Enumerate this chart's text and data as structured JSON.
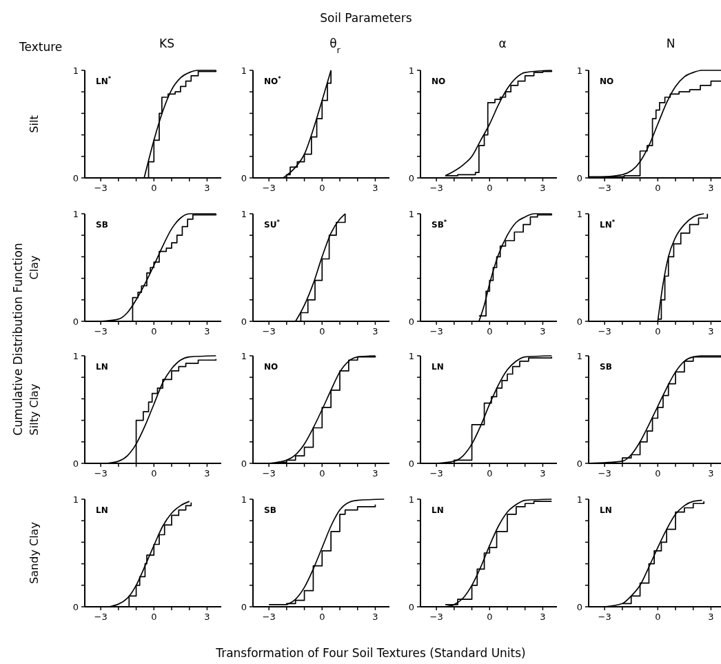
{
  "chart_data": [
    {
      "type": "line",
      "title": "KS",
      "ylabel": "Silt",
      "annotations": [
        "LN$^{*}$",
        "Soil Parameters",
        "Texture",
        "Cumulative Distribution Function",
        "Transformation of Four Soil Textures (Standard Units)"
      ],
      "xlim": [
        -3.9,
        3.8
      ],
      "ylim": [
        0,
        1
      ],
      "xticks": [
        -3,
        {
          "value": -2,
          "label": null
        },
        {
          "value": -1,
          "label": null
        },
        0,
        {
          "value": 1,
          "label": null
        },
        {
          "value": 2,
          "label": null
        },
        3
      ],
      "yticks": [
        {
          "value": 0,
          "label": "0"
        },
        {
          "value": 0.2,
          "label": null
        },
        {
          "value": 0.4,
          "label": null
        },
        {
          "value": 0.6,
          "label": null
        },
        {
          "value": 0.8,
          "label": null
        },
        {
          "value": 1,
          "label": "1"
        }
      ],
      "series": [
        {
          "type": "step",
          "color": "#000000",
          "x": [
            -0.55,
            -0.3,
            0,
            0.3,
            0.45,
            0.8,
            1.2,
            1.5,
            1.8,
            2.1,
            2.5,
            3.5
          ],
          "values": [
            0,
            0.15,
            0.35,
            0.6,
            0.75,
            0.78,
            0.8,
            0.85,
            0.9,
            0.95,
            0.99,
            1
          ]
        },
        {
          "type": "line",
          "color": "#000000",
          "x": [
            -0.55,
            0,
            0.5,
            1,
            1.5,
            2,
            2.5,
            3.5
          ],
          "values": [
            0,
            0.35,
            0.62,
            0.82,
            0.93,
            0.98,
            1,
            1
          ]
        }
      ]
    },
    {
      "type": "line",
      "title": "θ$_{r}$",
      "annotations": [
        "NO$^{*}$"
      ],
      "xlim": [
        -3.9,
        3.8
      ],
      "ylim": [
        0,
        1
      ],
      "xticks": [
        -3,
        {
          "value": -2,
          "label": null
        },
        {
          "value": -1,
          "label": null
        },
        0,
        {
          "value": 1,
          "label": null
        },
        {
          "value": 2,
          "label": null
        },
        3
      ],
      "yticks": [
        {
          "value": 0,
          "label": "0"
        },
        {
          "value": 0.2,
          "label": null
        },
        {
          "value": 0.4,
          "label": null
        },
        {
          "value": 0.6,
          "label": null
        },
        {
          "value": 0.8,
          "label": null
        },
        {
          "value": 1,
          "label": "1"
        }
      ],
      "series": [
        {
          "type": "step",
          "color": "#000000",
          "x": [
            -2.2,
            -2,
            -1.8,
            -1.4,
            -1,
            -0.6,
            -0.3,
            0,
            0.3,
            0.5
          ],
          "values": [
            0,
            0.03,
            0.1,
            0.15,
            0.22,
            0.38,
            0.55,
            0.72,
            0.88,
            1
          ]
        },
        {
          "type": "line",
          "color": "#000000",
          "x": [
            -2.2,
            -1.5,
            -1,
            -0.5,
            0,
            0.5
          ],
          "values": [
            0,
            0.1,
            0.22,
            0.45,
            0.72,
            1
          ]
        }
      ]
    },
    {
      "type": "line",
      "title": "α",
      "annotations": [
        "NO"
      ],
      "xlim": [
        -3.9,
        3.8
      ],
      "ylim": [
        0,
        1
      ],
      "xticks": [
        -3,
        {
          "value": -2,
          "label": null
        },
        {
          "value": -1,
          "label": null
        },
        0,
        {
          "value": 1,
          "label": null
        },
        {
          "value": 2,
          "label": null
        },
        3
      ],
      "yticks": [
        {
          "value": 0,
          "label": "0"
        },
        {
          "value": 0.2,
          "label": null
        },
        {
          "value": 0.4,
          "label": null
        },
        {
          "value": 0.6,
          "label": null
        },
        {
          "value": 0.8,
          "label": null
        },
        {
          "value": 1,
          "label": "1"
        }
      ],
      "series": [
        {
          "type": "step",
          "color": "#000000",
          "x": [
            -2.5,
            -1.8,
            -0.8,
            -0.6,
            -0.3,
            -0.1,
            0.3,
            0.6,
            0.9,
            1.2,
            1.6,
            2,
            2.5,
            3,
            3.5
          ],
          "values": [
            0.02,
            0.03,
            0.05,
            0.3,
            0.4,
            0.7,
            0.73,
            0.75,
            0.8,
            0.86,
            0.9,
            0.95,
            0.98,
            0.99,
            1
          ]
        },
        {
          "type": "line",
          "color": "#000000",
          "x": [
            -2.5,
            -1.5,
            -1,
            -0.5,
            0,
            0.5,
            1,
            1.5,
            2,
            3.5
          ],
          "values": [
            0.02,
            0.12,
            0.2,
            0.35,
            0.5,
            0.68,
            0.83,
            0.93,
            0.98,
            1
          ]
        }
      ]
    },
    {
      "type": "line",
      "title": "N",
      "annotations": [
        "NO"
      ],
      "xlim": [
        -3.9,
        3.8
      ],
      "ylim": [
        0,
        1
      ],
      "xticks": [
        -3,
        {
          "value": -2,
          "label": null
        },
        {
          "value": -1,
          "label": null
        },
        0,
        {
          "value": 1,
          "label": null
        },
        {
          "value": 2,
          "label": null
        },
        3
      ],
      "yticks": [
        {
          "value": 0,
          "label": "0"
        },
        {
          "value": 0.2,
          "label": null
        },
        {
          "value": 0.4,
          "label": null
        },
        {
          "value": 0.6,
          "label": null
        },
        {
          "value": 0.8,
          "label": null
        },
        {
          "value": 1,
          "label": "1"
        }
      ],
      "series": [
        {
          "type": "step",
          "color": "#000000",
          "x": [
            -3.9,
            -1.9,
            -1,
            -0.6,
            -0.3,
            -0.1,
            0.1,
            0.4,
            0.7,
            1.2,
            1.8,
            2.4,
            3,
            3.8
          ],
          "values": [
            0.01,
            0.02,
            0.25,
            0.3,
            0.55,
            0.63,
            0.7,
            0.75,
            0.78,
            0.8,
            0.82,
            0.86,
            0.9,
            0.92
          ]
        },
        {
          "type": "line",
          "color": "#000000",
          "x": [
            -3.9,
            -2,
            -1,
            -0.5,
            0,
            0.5,
            1,
            1.5,
            2,
            2.5,
            3.8
          ],
          "values": [
            0,
            0.03,
            0.15,
            0.3,
            0.5,
            0.7,
            0.85,
            0.94,
            0.98,
            1,
            1
          ]
        }
      ]
    },
    {
      "type": "line",
      "ylabel": "Clay",
      "annotations": [
        "SB"
      ],
      "xlim": [
        -3.9,
        3.8
      ],
      "ylim": [
        0,
        1
      ],
      "xticks": [
        -3,
        {
          "value": -2,
          "label": null
        },
        {
          "value": -1,
          "label": null
        },
        0,
        {
          "value": 1,
          "label": null
        },
        {
          "value": 2,
          "label": null
        },
        3
      ],
      "yticks": [
        {
          "value": 0,
          "label": "0"
        },
        {
          "value": 0.2,
          "label": null
        },
        {
          "value": 0.4,
          "label": null
        },
        {
          "value": 0.6,
          "label": null
        },
        {
          "value": 0.8,
          "label": null
        },
        {
          "value": 1,
          "label": "1"
        }
      ],
      "series": [
        {
          "type": "step",
          "color": "#000000",
          "x": [
            -1.2,
            -1.2,
            -0.9,
            -0.7,
            -0.4,
            -0.2,
            0,
            0.3,
            0.7,
            1,
            1.3,
            1.6,
            1.9,
            2.2,
            3.5
          ],
          "values": [
            0,
            0.22,
            0.27,
            0.33,
            0.45,
            0.5,
            0.55,
            0.65,
            0.68,
            0.73,
            0.8,
            0.88,
            0.95,
            0.99,
            1
          ]
        },
        {
          "type": "line",
          "color": "#000000",
          "x": [
            -3,
            -2,
            -1.5,
            -1,
            -0.5,
            0,
            0.5,
            1,
            1.5,
            2,
            3.5
          ],
          "values": [
            0,
            0.02,
            0.08,
            0.2,
            0.35,
            0.52,
            0.7,
            0.86,
            0.96,
            1,
            1
          ]
        }
      ]
    },
    {
      "type": "line",
      "annotations": [
        "SU$^{*}$"
      ],
      "xlim": [
        -3.9,
        3.8
      ],
      "ylim": [
        0,
        1
      ],
      "xticks": [
        -3,
        {
          "value": -2,
          "label": null
        },
        {
          "value": -1,
          "label": null
        },
        0,
        {
          "value": 1,
          "label": null
        },
        {
          "value": 2,
          "label": null
        },
        3
      ],
      "yticks": [
        {
          "value": 0,
          "label": "0"
        },
        {
          "value": 0.2,
          "label": null
        },
        {
          "value": 0.4,
          "label": null
        },
        {
          "value": 0.6,
          "label": null
        },
        {
          "value": 0.8,
          "label": null
        },
        {
          "value": 1,
          "label": "1"
        }
      ],
      "series": [
        {
          "type": "step",
          "color": "#000000",
          "x": [
            -1.5,
            -1.2,
            -0.8,
            -0.4,
            0,
            0.4,
            0.8,
            1.3
          ],
          "values": [
            0,
            0.08,
            0.2,
            0.38,
            0.58,
            0.8,
            0.92,
            1
          ]
        },
        {
          "type": "line",
          "color": "#000000",
          "x": [
            -1.5,
            -1,
            -0.5,
            0,
            0.5,
            1,
            1.3
          ],
          "values": [
            0,
            0.15,
            0.35,
            0.6,
            0.82,
            0.95,
            1
          ]
        }
      ]
    },
    {
      "type": "line",
      "annotations": [
        "SB$^{*}$"
      ],
      "xlim": [
        -3.9,
        3.8
      ],
      "ylim": [
        0,
        1
      ],
      "xticks": [
        -3,
        {
          "value": -2,
          "label": null
        },
        {
          "value": -1,
          "label": null
        },
        0,
        {
          "value": 1,
          "label": null
        },
        {
          "value": 2,
          "label": null
        },
        3
      ],
      "yticks": [
        {
          "value": 0,
          "label": "0"
        },
        {
          "value": 0.2,
          "label": null
        },
        {
          "value": 0.4,
          "label": null
        },
        {
          "value": 0.6,
          "label": null
        },
        {
          "value": 0.8,
          "label": null
        },
        {
          "value": 1,
          "label": "1"
        }
      ],
      "series": [
        {
          "type": "step",
          "color": "#000000",
          "x": [
            -0.6,
            -0.2,
            0,
            0.2,
            0.4,
            0.6,
            0.9,
            1.4,
            1.9,
            2.3,
            2.7,
            3.5
          ],
          "values": [
            0.05,
            0.28,
            0.38,
            0.5,
            0.6,
            0.7,
            0.75,
            0.83,
            0.9,
            0.97,
            0.99,
            1
          ]
        },
        {
          "type": "line",
          "color": "#000000",
          "x": [
            -0.6,
            -0.3,
            0,
            0.5,
            1,
            1.5,
            2,
            2.5,
            3.5
          ],
          "values": [
            0,
            0.15,
            0.35,
            0.62,
            0.8,
            0.92,
            0.97,
            1,
            1
          ]
        }
      ]
    },
    {
      "type": "line",
      "annotations": [
        "LN$^{*}$"
      ],
      "xlim": [
        -3.9,
        3.8
      ],
      "ylim": [
        0,
        1
      ],
      "xticks": [
        -3,
        {
          "value": -2,
          "label": null
        },
        {
          "value": -1,
          "label": null
        },
        0,
        {
          "value": 1,
          "label": null
        },
        {
          "value": 2,
          "label": null
        },
        3
      ],
      "yticks": [
        {
          "value": 0,
          "label": "0"
        },
        {
          "value": 0.2,
          "label": null
        },
        {
          "value": 0.4,
          "label": null
        },
        {
          "value": 0.6,
          "label": null
        },
        {
          "value": 0.8,
          "label": null
        },
        {
          "value": 1,
          "label": "1"
        }
      ],
      "series": [
        {
          "type": "step",
          "color": "#000000",
          "x": [
            0,
            0.2,
            0.4,
            0.6,
            0.9,
            1.3,
            1.8,
            2.3,
            2.8
          ],
          "values": [
            0.02,
            0.2,
            0.42,
            0.6,
            0.72,
            0.82,
            0.9,
            0.96,
            1
          ]
        },
        {
          "type": "line",
          "color": "#000000",
          "x": [
            0,
            0.3,
            0.6,
            1,
            1.5,
            2,
            2.6
          ],
          "values": [
            0,
            0.35,
            0.6,
            0.78,
            0.9,
            0.97,
            1
          ]
        }
      ]
    },
    {
      "type": "line",
      "ylabel": "Silty Clay",
      "annotations": [
        "LN"
      ],
      "xlim": [
        -3.9,
        3.8
      ],
      "ylim": [
        0,
        1
      ],
      "xticks": [
        -3,
        {
          "value": -2,
          "label": null
        },
        {
          "value": -1,
          "label": null
        },
        0,
        {
          "value": 1,
          "label": null
        },
        {
          "value": 2,
          "label": null
        },
        3
      ],
      "yticks": [
        {
          "value": 0,
          "label": "0"
        },
        {
          "value": 0.2,
          "label": null
        },
        {
          "value": 0.4,
          "label": null
        },
        {
          "value": 0.6,
          "label": null
        },
        {
          "value": 0.8,
          "label": null
        },
        {
          "value": 1,
          "label": "1"
        }
      ],
      "series": [
        {
          "type": "step",
          "color": "#000000",
          "x": [
            -1,
            -1,
            -0.6,
            -0.3,
            -0.1,
            0.2,
            0.5,
            1,
            1.4,
            1.8,
            2.5,
            3.5
          ],
          "values": [
            0,
            0.4,
            0.48,
            0.57,
            0.65,
            0.7,
            0.78,
            0.86,
            0.9,
            0.93,
            0.96,
            0.97
          ]
        },
        {
          "type": "line",
          "color": "#000000",
          "x": [
            -2.7,
            -2,
            -1.5,
            -1,
            -0.5,
            0,
            0.5,
            1,
            1.5,
            2,
            3.5
          ],
          "values": [
            0,
            0.02,
            0.07,
            0.18,
            0.35,
            0.55,
            0.75,
            0.88,
            0.96,
            0.99,
            1
          ]
        }
      ]
    },
    {
      "type": "line",
      "annotations": [
        "NO"
      ],
      "xlim": [
        -3.9,
        3.8
      ],
      "ylim": [
        0,
        1
      ],
      "xticks": [
        -3,
        {
          "value": -2,
          "label": null
        },
        {
          "value": -1,
          "label": null
        },
        0,
        {
          "value": 1,
          "label": null
        },
        {
          "value": 2,
          "label": null
        },
        3
      ],
      "yticks": [
        {
          "value": 0,
          "label": "0"
        },
        {
          "value": 0.2,
          "label": null
        },
        {
          "value": 0.4,
          "label": null
        },
        {
          "value": 0.6,
          "label": null
        },
        {
          "value": 0.8,
          "label": null
        },
        {
          "value": 1,
          "label": "1"
        }
      ],
      "series": [
        {
          "type": "step",
          "color": "#000000",
          "x": [
            -2.5,
            -2,
            -1.5,
            -1,
            -0.5,
            0,
            0.5,
            1,
            1.5,
            2,
            3
          ],
          "values": [
            0.01,
            0.03,
            0.07,
            0.15,
            0.33,
            0.52,
            0.68,
            0.86,
            0.96,
            0.99,
            1
          ]
        },
        {
          "type": "line",
          "color": "#000000",
          "x": [
            -3,
            -2,
            -1.5,
            -1,
            -0.5,
            0,
            0.5,
            1,
            1.5,
            2,
            3
          ],
          "values": [
            0,
            0.03,
            0.08,
            0.18,
            0.33,
            0.5,
            0.68,
            0.85,
            0.95,
            0.99,
            1
          ]
        }
      ]
    },
    {
      "type": "line",
      "annotations": [
        "LN"
      ],
      "xlim": [
        -3.9,
        3.8
      ],
      "ylim": [
        0,
        1
      ],
      "xticks": [
        -3,
        {
          "value": -2,
          "label": null
        },
        {
          "value": -1,
          "label": null
        },
        0,
        {
          "value": 1,
          "label": null
        },
        {
          "value": 2,
          "label": null
        },
        3
      ],
      "yticks": [
        {
          "value": 0,
          "label": "0"
        },
        {
          "value": 0.2,
          "label": null
        },
        {
          "value": 0.4,
          "label": null
        },
        {
          "value": 0.6,
          "label": null
        },
        {
          "value": 0.8,
          "label": null
        },
        {
          "value": 1,
          "label": "1"
        }
      ],
      "series": [
        {
          "type": "step",
          "color": "#000000",
          "x": [
            -2.9,
            -2,
            -1,
            -0.3,
            0.1,
            0.4,
            0.7,
            1,
            1.3,
            1.7,
            2.2,
            3.5
          ],
          "values": [
            0,
            0.03,
            0.36,
            0.56,
            0.62,
            0.7,
            0.77,
            0.83,
            0.9,
            0.95,
            0.98,
            0.99
          ]
        },
        {
          "type": "line",
          "color": "#000000",
          "x": [
            -3,
            -2,
            -1.5,
            -1,
            -0.5,
            0,
            0.5,
            1,
            1.5,
            2,
            3.5
          ],
          "values": [
            0,
            0.02,
            0.07,
            0.18,
            0.35,
            0.55,
            0.73,
            0.87,
            0.95,
            0.99,
            1
          ]
        }
      ]
    },
    {
      "type": "line",
      "annotations": [
        "SB"
      ],
      "xlim": [
        -3.9,
        3.8
      ],
      "ylim": [
        0,
        1
      ],
      "xticks": [
        -3,
        {
          "value": -2,
          "label": null
        },
        {
          "value": -1,
          "label": null
        },
        0,
        {
          "value": 1,
          "label": null
        },
        {
          "value": 2,
          "label": null
        },
        3
      ],
      "yticks": [
        {
          "value": 0,
          "label": "0"
        },
        {
          "value": 0.2,
          "label": null
        },
        {
          "value": 0.4,
          "label": null
        },
        {
          "value": 0.6,
          "label": null
        },
        {
          "value": 0.8,
          "label": null
        },
        {
          "value": 1,
          "label": "1"
        }
      ],
      "series": [
        {
          "type": "step",
          "color": "#000000",
          "x": [
            -3.9,
            -2,
            -1.5,
            -1,
            -0.6,
            -0.3,
            0,
            0.3,
            0.6,
            1,
            1.5,
            2,
            3.8
          ],
          "values": [
            0,
            0.05,
            0.08,
            0.2,
            0.3,
            0.42,
            0.52,
            0.63,
            0.74,
            0.85,
            0.95,
            0.99,
            1
          ]
        },
        {
          "type": "line",
          "color": "#000000",
          "x": [
            -3.9,
            -2,
            -1.5,
            -1,
            -0.5,
            0,
            0.5,
            1,
            1.5,
            2,
            2.5,
            3.8
          ],
          "values": [
            0,
            0.02,
            0.08,
            0.2,
            0.36,
            0.53,
            0.7,
            0.85,
            0.95,
            0.99,
            1,
            1
          ]
        }
      ]
    },
    {
      "type": "line",
      "ylabel": "Sandy Clay",
      "annotations": [
        "LN"
      ],
      "xlim": [
        -3.9,
        3.8
      ],
      "ylim": [
        0,
        1
      ],
      "xticks": [
        -3,
        {
          "value": -2,
          "label": null
        },
        {
          "value": -1,
          "label": null
        },
        0,
        {
          "value": 1,
          "label": null
        },
        {
          "value": 2,
          "label": null
        },
        3
      ],
      "yticks": [
        {
          "value": 0,
          "label": "0"
        },
        {
          "value": 0.2,
          "label": null
        },
        {
          "value": 0.4,
          "label": null
        },
        {
          "value": 0.6,
          "label": null
        },
        {
          "value": 0.8,
          "label": null
        },
        {
          "value": 1,
          "label": "1"
        }
      ],
      "series": [
        {
          "type": "step",
          "color": "#000000",
          "x": [
            -1.4,
            -1.4,
            -1,
            -0.8,
            -0.5,
            -0.4,
            0,
            0.3,
            0.6,
            1,
            1.4,
            1.8,
            2.1
          ],
          "values": [
            0,
            0.1,
            0.2,
            0.28,
            0.4,
            0.48,
            0.58,
            0.67,
            0.76,
            0.85,
            0.9,
            0.94,
            0.97
          ]
        },
        {
          "type": "line",
          "color": "#000000",
          "x": [
            -2.5,
            -1.5,
            -1,
            -0.5,
            0,
            0.5,
            1,
            1.5,
            2
          ],
          "values": [
            0,
            0.08,
            0.2,
            0.38,
            0.57,
            0.75,
            0.87,
            0.94,
            0.98
          ]
        }
      ]
    },
    {
      "type": "line",
      "annotations": [
        "SB"
      ],
      "xlim": [
        -3.9,
        3.8
      ],
      "ylim": [
        0,
        1
      ],
      "xticks": [
        -3,
        {
          "value": -2,
          "label": null
        },
        {
          "value": -1,
          "label": null
        },
        0,
        {
          "value": 1,
          "label": null
        },
        {
          "value": 2,
          "label": null
        },
        3
      ],
      "yticks": [
        {
          "value": 0,
          "label": "0"
        },
        {
          "value": 0.2,
          "label": null
        },
        {
          "value": 0.4,
          "label": null
        },
        {
          "value": 0.6,
          "label": null
        },
        {
          "value": 0.8,
          "label": null
        },
        {
          "value": 1,
          "label": "1"
        }
      ],
      "series": [
        {
          "type": "step",
          "color": "#000000",
          "x": [
            -3,
            -2,
            -1.5,
            -1,
            -0.5,
            0,
            0.5,
            1,
            1.3,
            2,
            3
          ],
          "values": [
            0.02,
            0.03,
            0.06,
            0.15,
            0.38,
            0.52,
            0.7,
            0.86,
            0.9,
            0.93,
            0.95
          ]
        },
        {
          "type": "line",
          "color": "#000000",
          "x": [
            -2,
            -1.5,
            -1,
            -0.5,
            0,
            0.5,
            1,
            1.5,
            2,
            3.5
          ],
          "values": [
            0.02,
            0.07,
            0.18,
            0.35,
            0.55,
            0.75,
            0.9,
            0.97,
            0.99,
            1
          ]
        }
      ]
    },
    {
      "type": "line",
      "annotations": [
        "LN"
      ],
      "xlim": [
        -3.9,
        3.8
      ],
      "ylim": [
        0,
        1
      ],
      "xticks": [
        -3,
        {
          "value": -2,
          "label": null
        },
        {
          "value": -1,
          "label": null
        },
        0,
        {
          "value": 1,
          "label": null
        },
        {
          "value": 2,
          "label": null
        },
        3
      ],
      "yticks": [
        {
          "value": 0,
          "label": "0"
        },
        {
          "value": 0.2,
          "label": null
        },
        {
          "value": 0.4,
          "label": null
        },
        {
          "value": 0.6,
          "label": null
        },
        {
          "value": 0.8,
          "label": null
        },
        {
          "value": 1,
          "label": "1"
        }
      ],
      "series": [
        {
          "type": "step",
          "color": "#000000",
          "x": [
            -2.5,
            -1.8,
            -1,
            -0.7,
            -0.3,
            0,
            0.4,
            1,
            1.5,
            2,
            2.5,
            3.5
          ],
          "values": [
            0.02,
            0.07,
            0.2,
            0.35,
            0.5,
            0.55,
            0.7,
            0.86,
            0.93,
            0.96,
            0.98,
            0.98
          ]
        },
        {
          "type": "line",
          "color": "#000000",
          "x": [
            -2.5,
            -2,
            -1.5,
            -1,
            -0.5,
            0,
            0.5,
            1,
            1.5,
            2,
            3.5
          ],
          "values": [
            0,
            0.02,
            0.08,
            0.2,
            0.37,
            0.57,
            0.75,
            0.88,
            0.95,
            0.99,
            1
          ]
        }
      ]
    },
    {
      "type": "line",
      "annotations": [
        "LN"
      ],
      "xlim": [
        -3.9,
        3.8
      ],
      "ylim": [
        0,
        1
      ],
      "xticks": [
        -3,
        {
          "value": -2,
          "label": null
        },
        {
          "value": -1,
          "label": null
        },
        0,
        {
          "value": 1,
          "label": null
        },
        {
          "value": 2,
          "label": null
        },
        3
      ],
      "yticks": [
        {
          "value": 0,
          "label": "0"
        },
        {
          "value": 0.2,
          "label": null
        },
        {
          "value": 0.4,
          "label": null
        },
        {
          "value": 0.6,
          "label": null
        },
        {
          "value": 0.8,
          "label": null
        },
        {
          "value": 1,
          "label": "1"
        }
      ],
      "series": [
        {
          "type": "step",
          "color": "#000000",
          "x": [
            -2,
            -1.5,
            -1,
            -0.5,
            -0.2,
            0.2,
            0.5,
            1,
            1.5,
            2,
            2.6
          ],
          "values": [
            0.03,
            0.1,
            0.22,
            0.4,
            0.52,
            0.6,
            0.72,
            0.88,
            0.92,
            0.96,
            0.98
          ]
        },
        {
          "type": "line",
          "color": "#000000",
          "x": [
            -3,
            -2,
            -1.5,
            -1,
            -0.5,
            0,
            0.5,
            1,
            1.5,
            2,
            2.5
          ],
          "values": [
            0,
            0.03,
            0.1,
            0.2,
            0.37,
            0.55,
            0.72,
            0.86,
            0.94,
            0.98,
            0.99
          ]
        }
      ]
    }
  ]
}
